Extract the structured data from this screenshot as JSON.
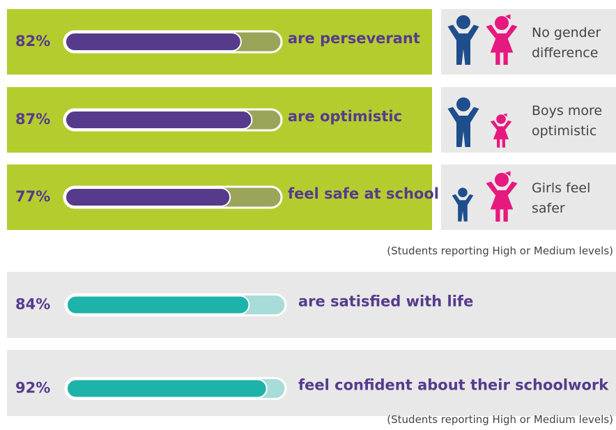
{
  "groups": [
    {
      "values": [
        82,
        87,
        77
      ],
      "value_labels": [
        "82%",
        "87%",
        "77%"
      ],
      "labels": [
        "are perseverant",
        "are optimistic",
        "feel safe at school"
      ],
      "notes": [
        [
          "No gender",
          "difference"
        ],
        [
          "Boys more",
          "optimistic"
        ],
        [
          "Girls feel",
          "safer"
        ]
      ],
      "source": "(Students reporting High or Medium levels)"
    },
    {
      "values": [
        84,
        92
      ],
      "value_labels": [
        "84%",
        "92%"
      ],
      "labels": [
        "are satisfied with life",
        "feel confident about their schoolwork"
      ],
      "source": "(Students reporting High or Medium levels)"
    }
  ]
}
